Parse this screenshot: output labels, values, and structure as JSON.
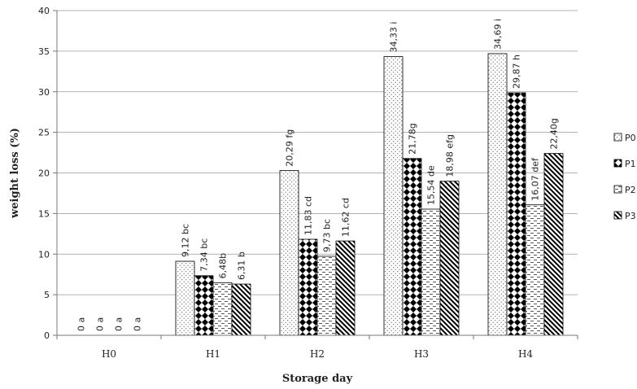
{
  "chart_data": {
    "type": "bar",
    "title": "",
    "xlabel": "Storage day",
    "ylabel": "weight loss (%)",
    "ylim": [
      0,
      40
    ],
    "yticks": [
      0,
      5,
      10,
      15,
      20,
      25,
      30,
      35,
      40
    ],
    "grid": true,
    "legend_position": "right",
    "categories": [
      "H0",
      "H1",
      "H2",
      "H3",
      "H4"
    ],
    "series": [
      {
        "name": "P0",
        "pattern": "dots",
        "values": [
          0,
          9.12,
          20.29,
          34.33,
          34.69
        ],
        "labels": [
          "0 a",
          "9,12 bc",
          "20,29 fg",
          "34,33 i",
          "34,69 i"
        ]
      },
      {
        "name": "P1",
        "pattern": "diamonds",
        "values": [
          0,
          7.34,
          11.83,
          21.78,
          29.87
        ],
        "labels": [
          "0 a",
          "7,34 bc",
          "11,83 cd",
          "21,78g",
          "29,87 h"
        ]
      },
      {
        "name": "P2",
        "pattern": "dashes",
        "values": [
          0,
          6.48,
          9.73,
          15.54,
          16.07
        ],
        "labels": [
          "0 a",
          "6,48b",
          "9,73 bc",
          "15,54 de",
          "16,07 def"
        ]
      },
      {
        "name": "P3",
        "pattern": "diagonal",
        "values": [
          0,
          6.31,
          11.62,
          18.98,
          22.4
        ],
        "labels": [
          "0 a",
          "6,31 b",
          "11,62 cd",
          "18,98 efg",
          "22,40g"
        ]
      }
    ]
  }
}
